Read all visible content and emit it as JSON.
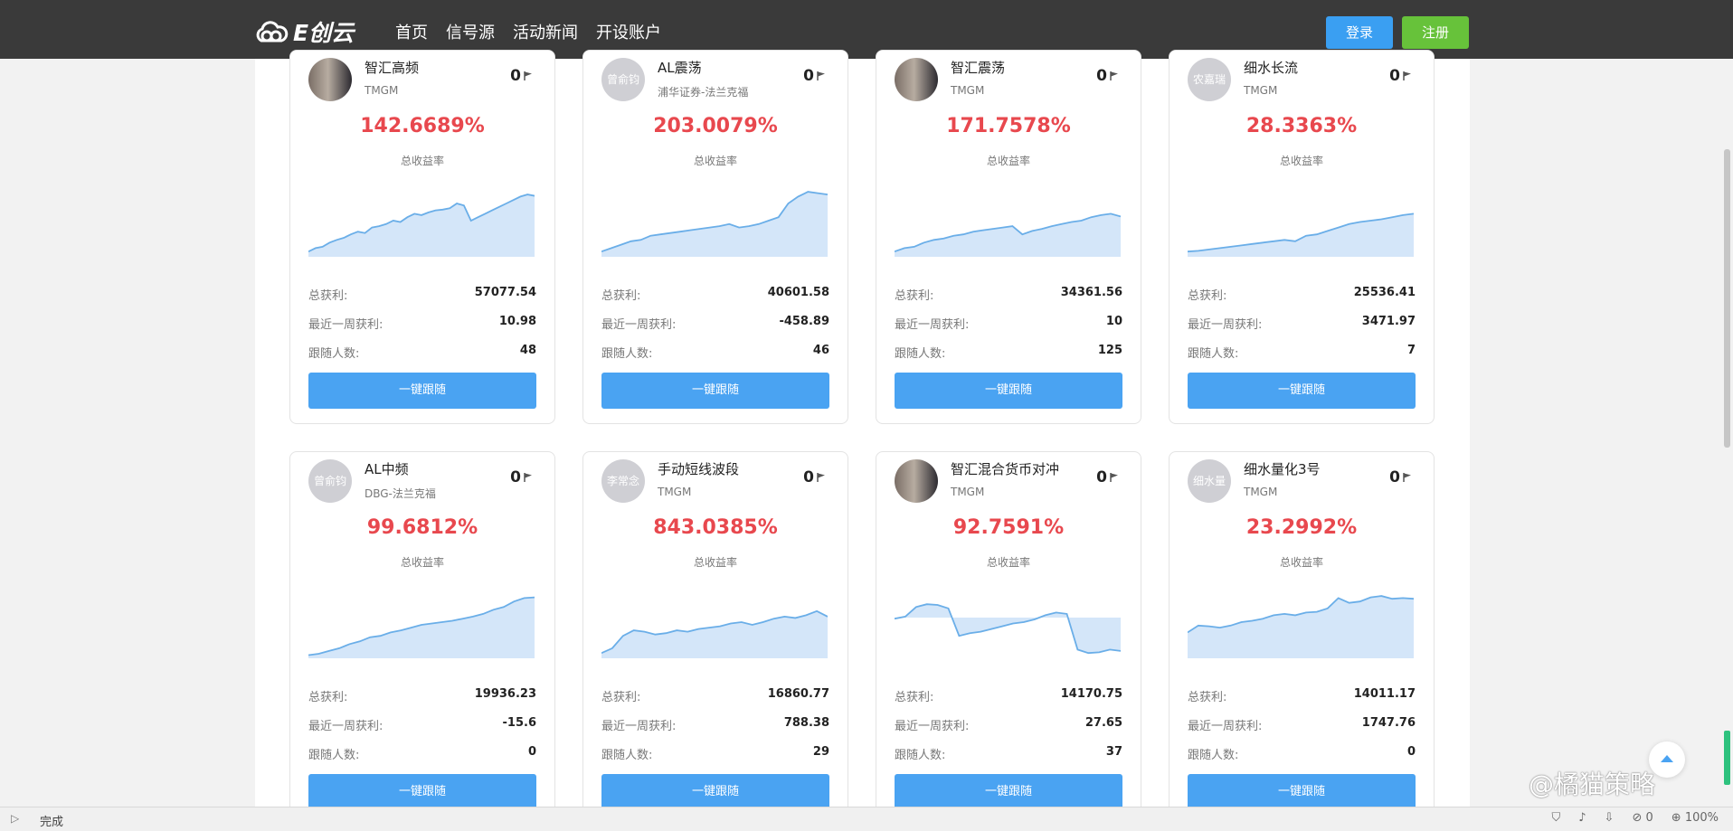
{
  "header": {
    "logo_text": "E创云",
    "nav": [
      "首页",
      "信号源",
      "活动新闻",
      "开设账户"
    ],
    "login": "登录",
    "register": "注册"
  },
  "labels": {
    "total_return": "总收益率",
    "total_profit": "总获利:",
    "week_profit": "最近一周获利:",
    "followers": "跟随人数:",
    "follow_btn": "一键跟随"
  },
  "cards": [
    {
      "name": "智汇高频",
      "broker": "TMGM",
      "avatar_text": "",
      "photo": true,
      "count": "0",
      "return": "142.6689%",
      "total_profit": "57077.54",
      "week_profit": "10.98",
      "followers": "48"
    },
    {
      "name": "AL震荡",
      "broker": "浦华证券-法兰克福",
      "avatar_text": "曾俞钧",
      "photo": false,
      "count": "0",
      "return": "203.0079%",
      "total_profit": "40601.58",
      "week_profit": "-458.89",
      "followers": "46"
    },
    {
      "name": "智汇震荡",
      "broker": "TMGM",
      "avatar_text": "",
      "photo": true,
      "count": "0",
      "return": "171.7578%",
      "total_profit": "34361.56",
      "week_profit": "10",
      "followers": "125"
    },
    {
      "name": "细水长流",
      "broker": "TMGM",
      "avatar_text": "农嘉瑞",
      "photo": false,
      "count": "0",
      "return": "28.3363%",
      "total_profit": "25536.41",
      "week_profit": "3471.97",
      "followers": "7"
    },
    {
      "name": "AL中频",
      "broker": "DBG-法兰克福",
      "avatar_text": "曾俞钧",
      "photo": false,
      "count": "0",
      "return": "99.6812%",
      "total_profit": "19936.23",
      "week_profit": "-15.6",
      "followers": "0"
    },
    {
      "name": "手动短线波段",
      "broker": "TMGM",
      "avatar_text": "李常念",
      "photo": false,
      "count": "0",
      "return": "843.0385%",
      "total_profit": "16860.77",
      "week_profit": "788.38",
      "followers": "29"
    },
    {
      "name": "智汇混合货币对冲",
      "broker": "TMGM",
      "avatar_text": "",
      "photo": true,
      "count": "0",
      "return": "92.7591%",
      "total_profit": "14170.75",
      "week_profit": "27.65",
      "followers": "37"
    },
    {
      "name": "细水量化3号",
      "broker": "TMGM",
      "avatar_text": "细水量",
      "photo": false,
      "count": "0",
      "return": "23.2992%",
      "total_profit": "14011.17",
      "week_profit": "1747.76",
      "followers": "0"
    }
  ],
  "statusbar": {
    "status": "完成",
    "count": "0",
    "zoom": "100%"
  },
  "watermark": "@橘猫策略",
  "colors": {
    "topbar": "#3a3a3a",
    "return_red": "#e8484e",
    "button_blue": "#4aa3f2",
    "login_blue": "#3a9ff2",
    "register_green": "#67c23a"
  }
}
